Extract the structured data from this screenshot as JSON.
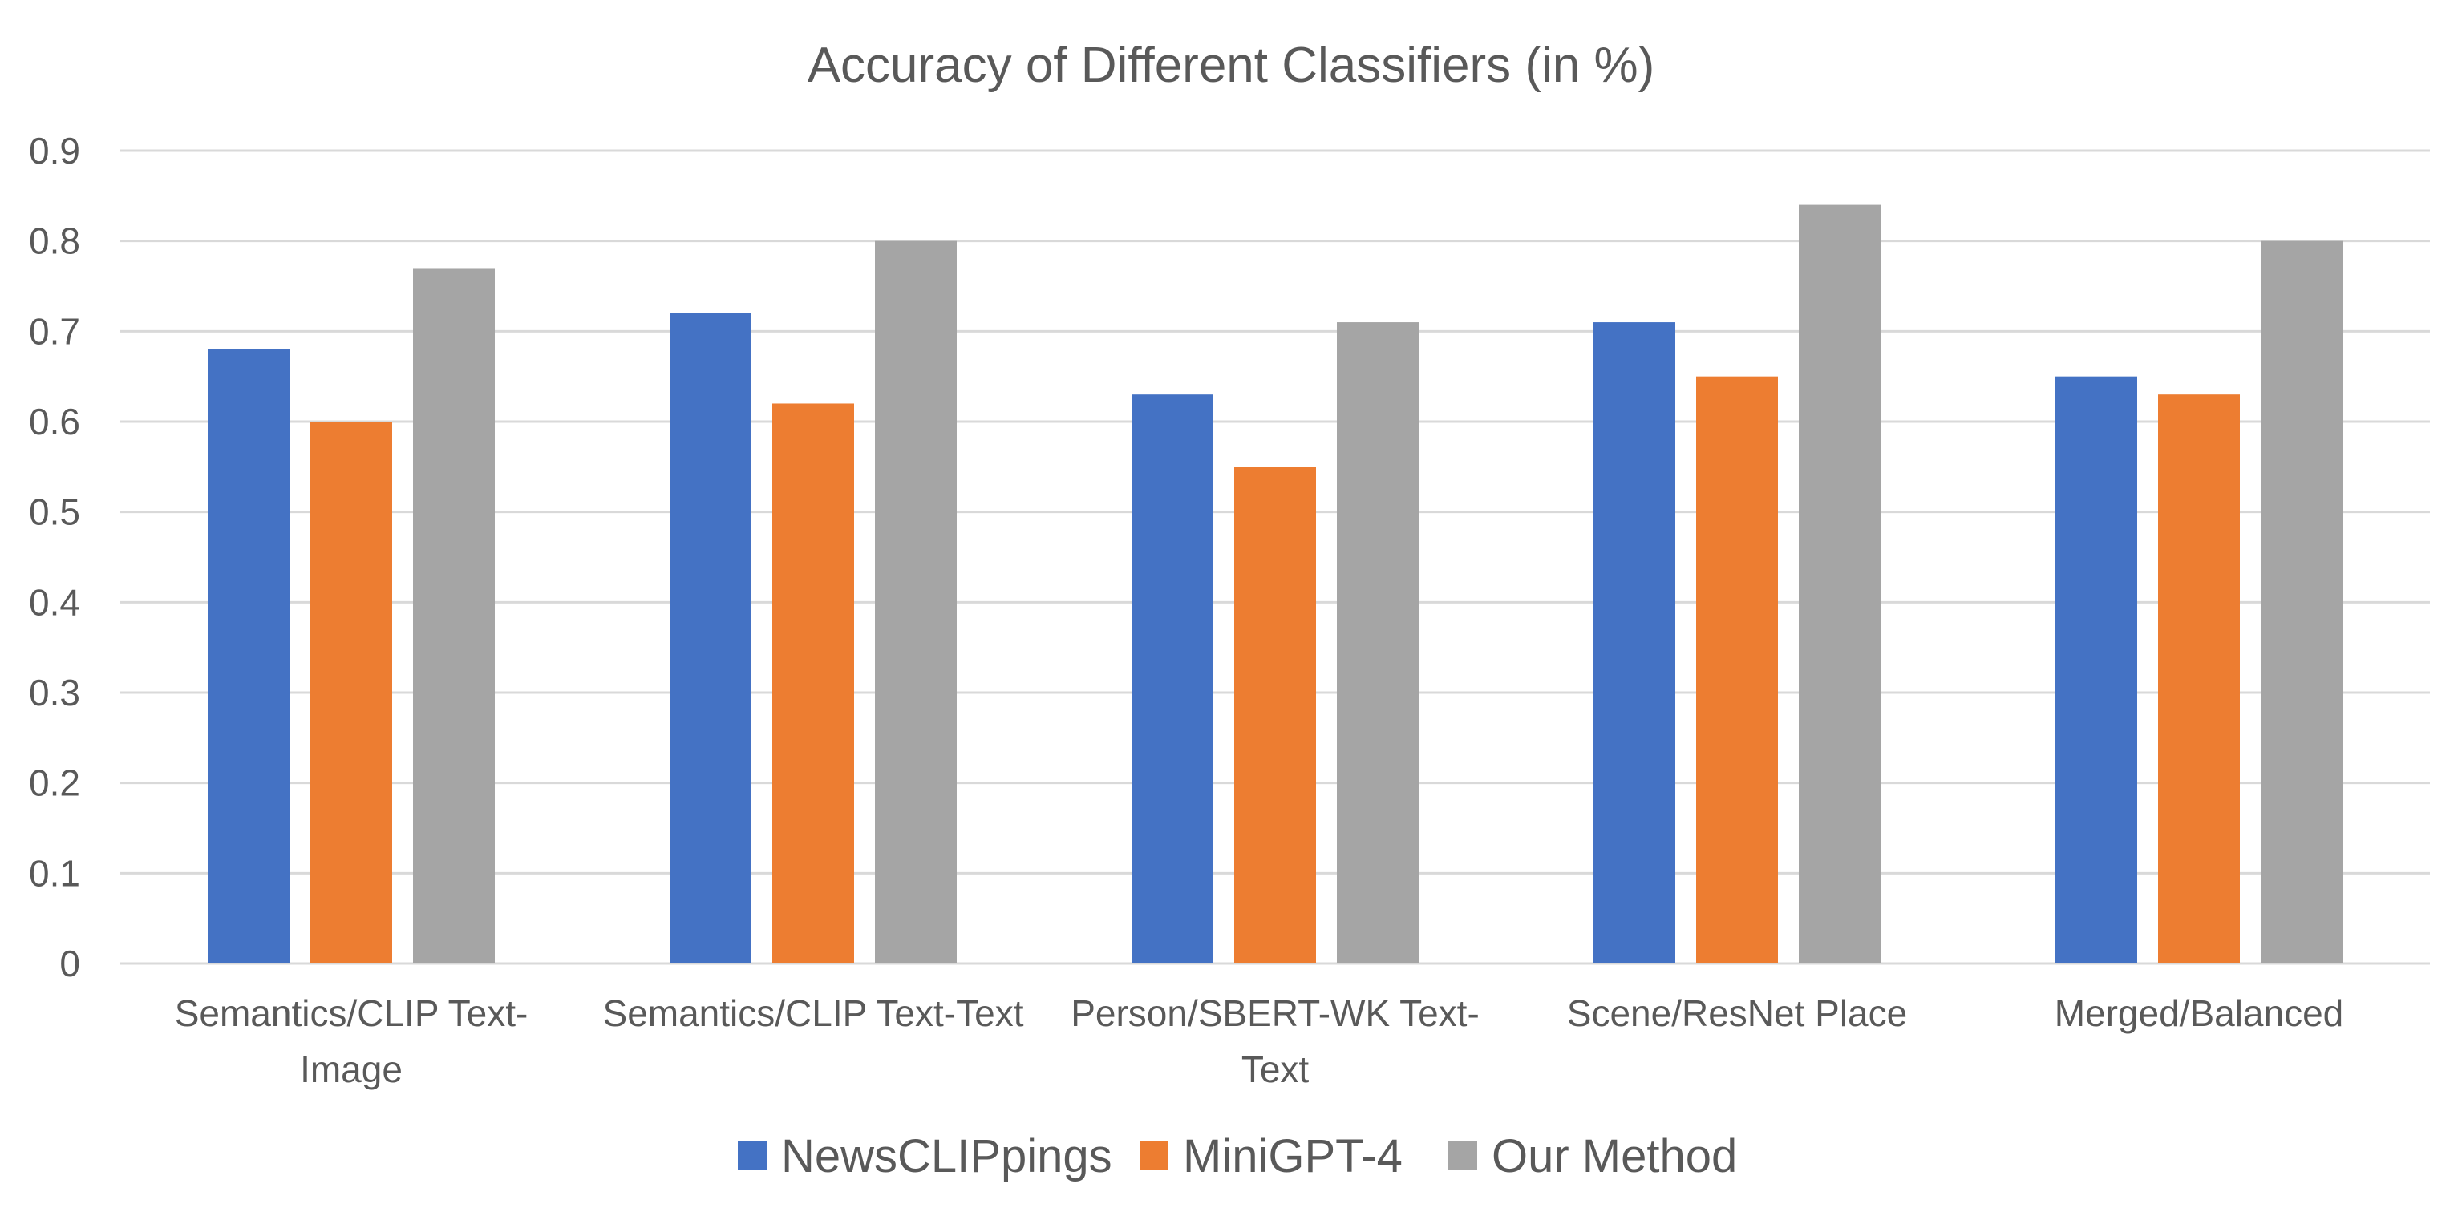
{
  "chart_data": {
    "type": "bar",
    "title": "Accuracy of Different Classifiers (in %)",
    "xlabel": "",
    "ylabel": "",
    "ylim": [
      0,
      0.9
    ],
    "yticks": [
      "0",
      "0.1",
      "0.2",
      "0.3",
      "0.4",
      "0.5",
      "0.6",
      "0.7",
      "0.8",
      "0.9"
    ],
    "grid": true,
    "legend": "bottom",
    "categories": [
      [
        "Semantics/CLIP Text-",
        "Image"
      ],
      [
        "Semantics/CLIP Text-Text"
      ],
      [
        "Person/SBERT-WK Text-",
        "Text"
      ],
      [
        "Scene/ResNet Place"
      ],
      [
        "Merged/Balanced"
      ]
    ],
    "series": [
      {
        "name": "NewsCLIPpings",
        "color": "#4472c4",
        "values": [
          0.68,
          0.72,
          0.63,
          0.71,
          0.65
        ]
      },
      {
        "name": "MiniGPT-4",
        "color": "#ed7d31",
        "values": [
          0.6,
          0.62,
          0.55,
          0.65,
          0.63
        ]
      },
      {
        "name": "Our Method",
        "color": "#a5a5a5",
        "values": [
          0.77,
          0.8,
          0.71,
          0.84,
          0.8
        ]
      }
    ]
  }
}
